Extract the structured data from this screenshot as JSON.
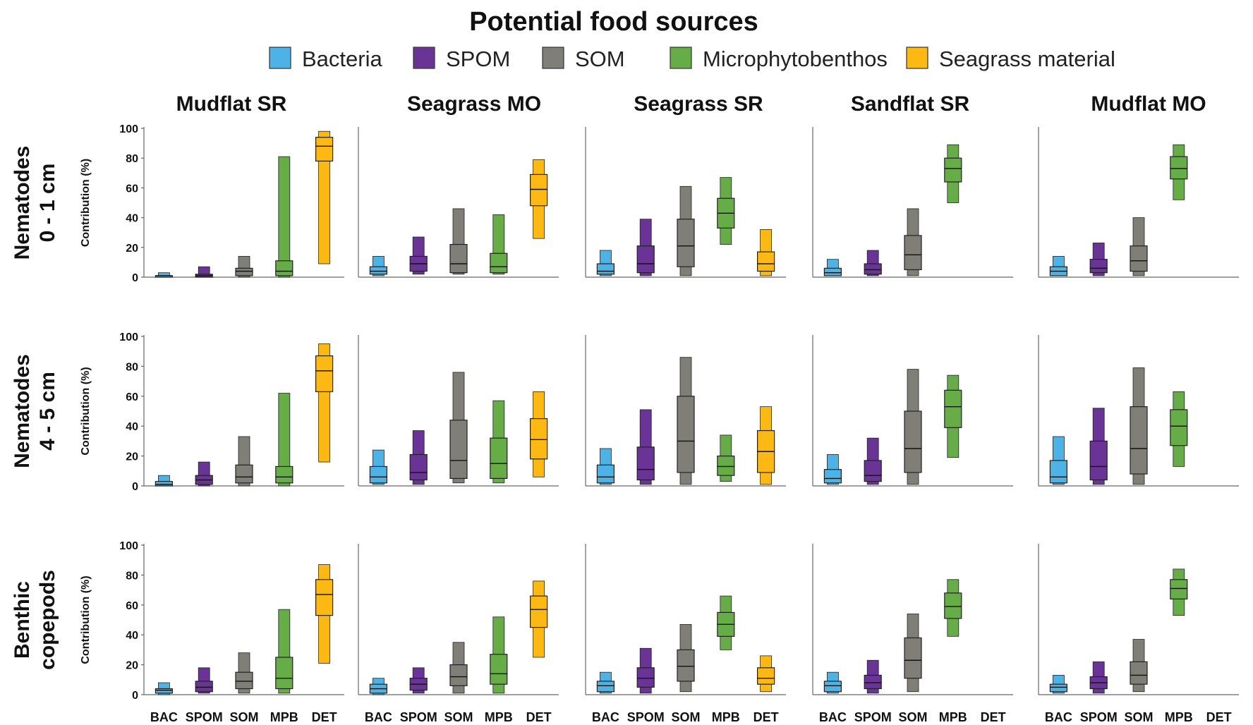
{
  "figure": {
    "title": "Potential food sources",
    "legend": [
      {
        "label": "Bacteria",
        "color": "#4db3e6"
      },
      {
        "label": "SPOM",
        "color": "#6a3496"
      },
      {
        "label": "SOM",
        "color": "#7f7f77"
      },
      {
        "label": "Microphytobenthos",
        "color": "#66ad47"
      },
      {
        "label": "Seagrass material",
        "color": "#fdb913"
      }
    ],
    "columns": [
      "Mudflat SR",
      "Seagrass MO",
      "Seagrass SR",
      "Sandflat SR",
      "Mudflat MO"
    ],
    "rows": [
      {
        "line1": "Nematodes",
        "line2": "0 - 1 cm"
      },
      {
        "line1": "Nematodes",
        "line2": "4 - 5 cm"
      },
      {
        "line1": "Benthic",
        "line2": "copepods"
      }
    ],
    "ylabel": "Contribution (%)",
    "yticks": [
      "0",
      "20",
      "40",
      "60",
      "80",
      "100"
    ],
    "xticks": [
      "BAC",
      "SPOM",
      "SOM",
      "MPB",
      "DET"
    ]
  },
  "chart_data": {
    "type": "box",
    "description_note": "Each box: [outer_low, inner_low, median, inner_high, outer_high] in % contribution",
    "ylim": [
      0,
      100
    ],
    "categories": [
      "BAC",
      "SPOM",
      "SOM",
      "MPB",
      "DET"
    ],
    "panels": [
      {
        "row": "Nematodes 0 - 1 cm",
        "column": "Mudflat SR",
        "values": [
          [
            0,
            0,
            1,
            1,
            3
          ],
          [
            0,
            0,
            1,
            2,
            7
          ],
          [
            0,
            1,
            4,
            6,
            14
          ],
          [
            0,
            1,
            4,
            11,
            81
          ],
          [
            9,
            78,
            88,
            94,
            98
          ]
        ]
      },
      {
        "row": "Nematodes 0 - 1 cm",
        "column": "Seagrass MO",
        "values": [
          [
            1,
            2,
            4,
            7,
            14
          ],
          [
            2,
            4,
            9,
            14,
            27
          ],
          [
            2,
            3,
            9,
            22,
            46
          ],
          [
            2,
            3,
            7,
            16,
            42
          ],
          [
            26,
            48,
            59,
            69,
            79
          ]
        ]
      },
      {
        "row": "Nematodes 0 - 1 cm",
        "column": "Seagrass SR",
        "values": [
          [
            1,
            2,
            4,
            9,
            18
          ],
          [
            1,
            3,
            9,
            21,
            39
          ],
          [
            1,
            7,
            21,
            39,
            61
          ],
          [
            22,
            33,
            43,
            53,
            67
          ],
          [
            1,
            4,
            9,
            17,
            32
          ]
        ]
      },
      {
        "row": "Nematodes 0 - 1 cm",
        "column": "Sandflat SR",
        "values": [
          [
            1,
            1,
            3,
            6,
            12
          ],
          [
            1,
            2,
            5,
            9,
            18
          ],
          [
            1,
            5,
            15,
            28,
            46
          ],
          [
            50,
            64,
            73,
            80,
            89
          ]
        ]
      },
      {
        "row": "Nematodes 0 - 1 cm",
        "column": "Mudflat MO",
        "values": [
          [
            1,
            1,
            4,
            7,
            14
          ],
          [
            1,
            3,
            6,
            12,
            23
          ],
          [
            1,
            4,
            11,
            21,
            40
          ],
          [
            52,
            66,
            73,
            81,
            89
          ]
        ]
      },
      {
        "row": "Nematodes 4 - 5 cm",
        "column": "Mudflat SR",
        "values": [
          [
            0,
            0,
            1,
            3,
            7
          ],
          [
            0,
            1,
            4,
            7,
            16
          ],
          [
            0,
            2,
            6,
            14,
            33
          ],
          [
            0,
            2,
            6,
            13,
            62
          ],
          [
            16,
            63,
            77,
            87,
            95
          ]
        ]
      },
      {
        "row": "Nematodes 4 - 5 cm",
        "column": "Seagrass MO",
        "values": [
          [
            1,
            2,
            6,
            13,
            24
          ],
          [
            1,
            4,
            9,
            21,
            37
          ],
          [
            2,
            5,
            17,
            44,
            76
          ],
          [
            2,
            5,
            15,
            32,
            57
          ],
          [
            6,
            18,
            31,
            45,
            63
          ]
        ]
      },
      {
        "row": "Nematodes 4 - 5 cm",
        "column": "Seagrass SR",
        "values": [
          [
            1,
            2,
            6,
            14,
            25
          ],
          [
            1,
            4,
            11,
            26,
            51
          ],
          [
            1,
            9,
            30,
            60,
            86
          ],
          [
            3,
            7,
            13,
            20,
            34
          ],
          [
            1,
            9,
            23,
            37,
            53
          ]
        ]
      },
      {
        "row": "Nematodes 4 - 5 cm",
        "column": "Sandflat SR",
        "values": [
          [
            1,
            2,
            5,
            11,
            21
          ],
          [
            1,
            3,
            7,
            17,
            32
          ],
          [
            1,
            9,
            25,
            50,
            78
          ],
          [
            19,
            39,
            53,
            64,
            74
          ]
        ]
      },
      {
        "row": "Nematodes 4 - 5 cm",
        "column": "Mudflat MO",
        "values": [
          [
            1,
            2,
            6,
            17,
            33
          ],
          [
            1,
            4,
            13,
            30,
            52
          ],
          [
            1,
            8,
            25,
            53,
            79
          ],
          [
            13,
            27,
            40,
            51,
            63
          ]
        ]
      },
      {
        "row": "Benthic copepods",
        "column": "Mudflat SR",
        "values": [
          [
            0,
            1,
            3,
            4,
            8
          ],
          [
            1,
            2,
            5,
            9,
            18
          ],
          [
            1,
            4,
            9,
            15,
            28
          ],
          [
            1,
            4,
            11,
            25,
            57
          ],
          [
            21,
            53,
            67,
            77,
            87
          ]
        ]
      },
      {
        "row": "Benthic copepods",
        "column": "Seagrass MO",
        "values": [
          [
            0,
            1,
            4,
            7,
            11
          ],
          [
            1,
            3,
            7,
            11,
            18
          ],
          [
            1,
            6,
            12,
            20,
            35
          ],
          [
            1,
            7,
            14,
            27,
            52
          ],
          [
            25,
            45,
            57,
            66,
            76
          ]
        ]
      },
      {
        "row": "Benthic copepods",
        "column": "Seagrass SR",
        "values": [
          [
            1,
            2,
            6,
            9,
            15
          ],
          [
            1,
            5,
            11,
            18,
            31
          ],
          [
            2,
            9,
            19,
            30,
            47
          ],
          [
            30,
            39,
            47,
            55,
            66
          ]
        ]
      },
      {
        "row": "Benthic copepods",
        "column": "Sandflat SR",
        "values": [
          [
            1,
            2,
            6,
            9,
            15
          ],
          [
            1,
            4,
            8,
            13,
            23
          ],
          [
            2,
            11,
            23,
            38,
            54
          ],
          [
            39,
            51,
            59,
            68,
            77
          ]
        ]
      },
      {
        "row": "Benthic copepods",
        "column": "Mudflat MO",
        "values": [
          [
            1,
            2,
            5,
            7,
            13
          ],
          [
            1,
            4,
            8,
            12,
            22
          ],
          [
            2,
            7,
            13,
            22,
            37
          ],
          [
            53,
            64,
            71,
            77,
            84
          ]
        ]
      }
    ],
    "det_panel_overrides": {
      "Nematodes 0 - 1 cm|Seagrass SR": true,
      "Benthic copepods|Seagrass SR": [
        2,
        7,
        11,
        18,
        26
      ]
    }
  }
}
